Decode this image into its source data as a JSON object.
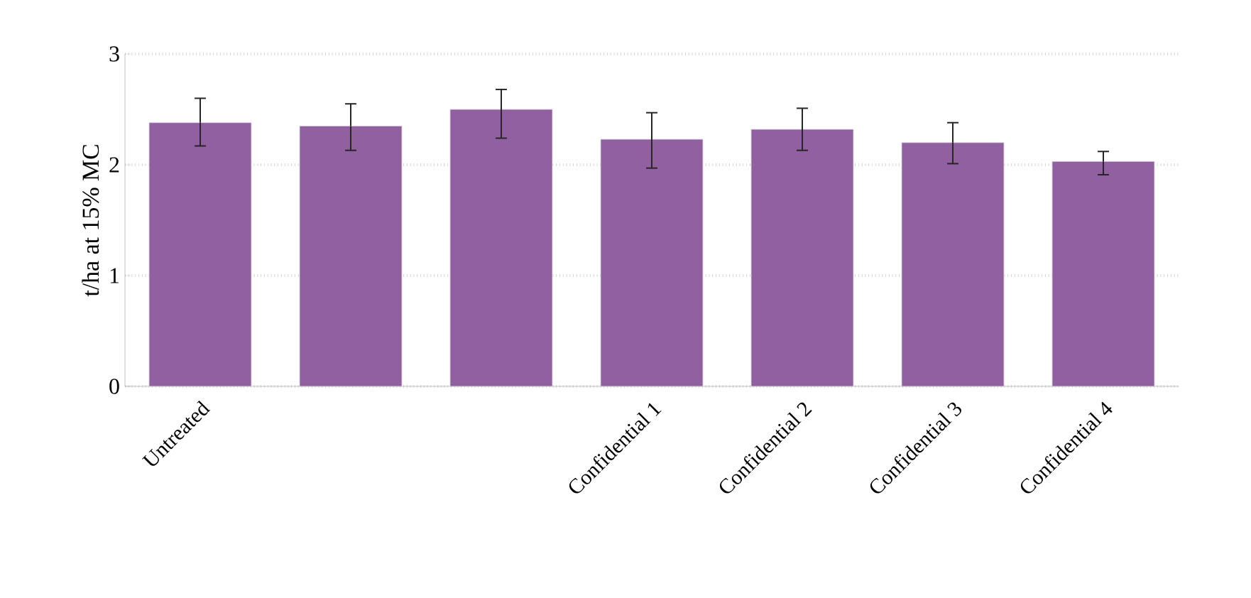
{
  "chart_data": {
    "type": "bar",
    "ylabel": "t/ha at 15% MC",
    "categories": [
      "Untreated",
      null,
      null,
      "Confidential 1",
      "Confidential 2",
      "Confidential 3",
      "Confidential 4"
    ],
    "values": [
      2.38,
      2.35,
      2.5,
      2.23,
      2.32,
      2.2,
      2.03
    ],
    "errors": [
      [
        2.17,
        2.6
      ],
      [
        2.13,
        2.55
      ],
      [
        2.24,
        2.68
      ],
      [
        1.97,
        2.47
      ],
      [
        2.13,
        2.51
      ],
      [
        2.01,
        2.38
      ],
      [
        1.91,
        2.12
      ]
    ],
    "color": "#9060a0",
    "ylim": [
      0,
      3
    ],
    "yticks": [
      0,
      1,
      2,
      3
    ],
    "grid": "y"
  }
}
